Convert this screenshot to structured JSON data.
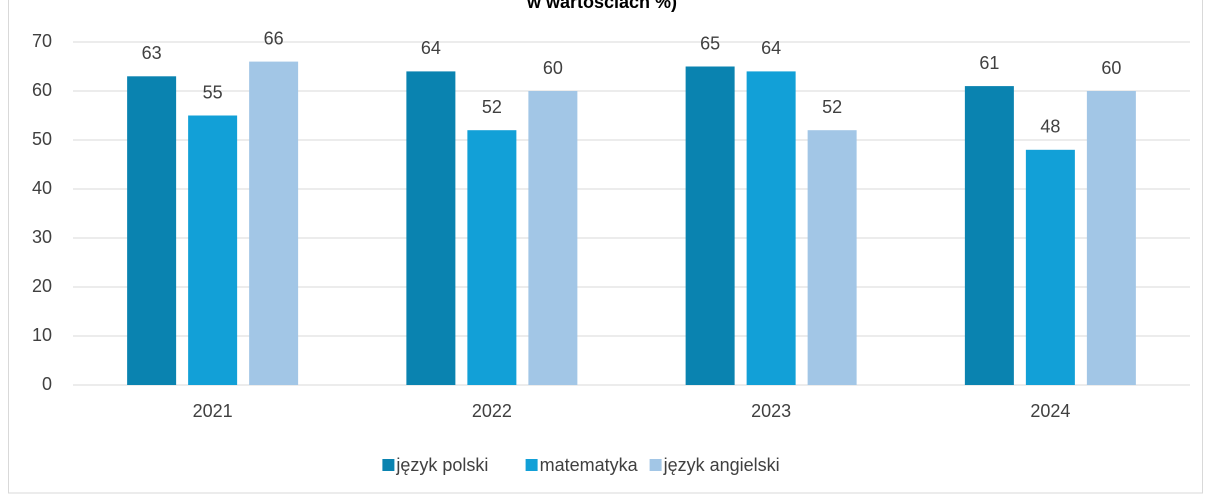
{
  "chart_data": {
    "type": "bar",
    "title": "w wartościach %)",
    "categories": [
      "2021",
      "2022",
      "2023",
      "2024"
    ],
    "series": [
      {
        "name": "język polski",
        "color": "#0a83b0",
        "values": [
          63,
          64,
          65,
          61
        ]
      },
      {
        "name": "matematyka",
        "color": "#12a0d7",
        "values": [
          55,
          52,
          64,
          48
        ]
      },
      {
        "name": "język angielski",
        "color": "#a2c6e6",
        "values": [
          66,
          60,
          52,
          60
        ]
      }
    ],
    "ylim": [
      0,
      70
    ],
    "yticks": [
      0,
      10,
      20,
      30,
      40,
      50,
      60,
      70
    ],
    "grid": true,
    "legend": "bottom"
  }
}
